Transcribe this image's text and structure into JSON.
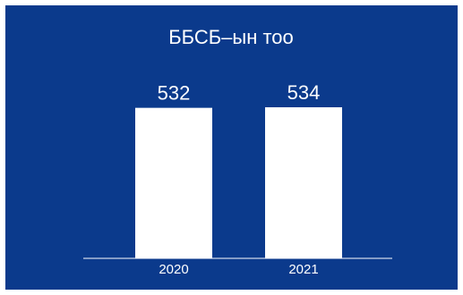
{
  "chart_data": {
    "type": "bar",
    "title": "ББСБ–ын тоо",
    "categories": [
      "2020",
      "2021"
    ],
    "values": [
      532,
      534
    ],
    "xlabel": "",
    "ylabel": "",
    "ylim": [
      0,
      534
    ],
    "grid": false,
    "legend": "none",
    "colors": {
      "background": "#0b3a8c",
      "bar": "#ffffff",
      "text": "#ffffff",
      "axis": "#ffffff"
    }
  }
}
